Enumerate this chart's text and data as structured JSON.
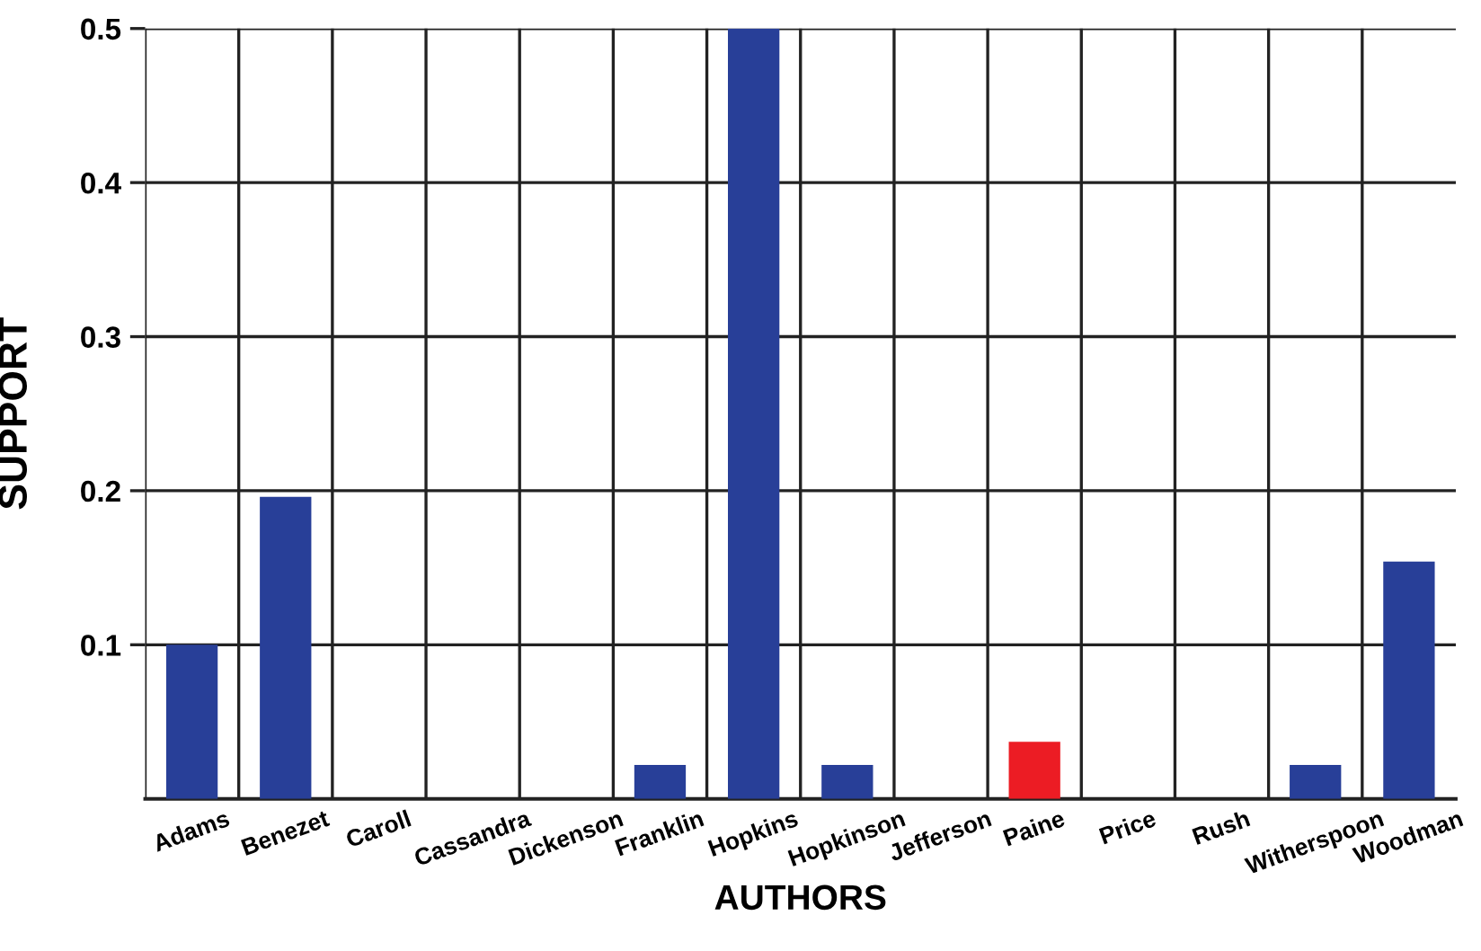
{
  "chart_data": {
    "type": "bar",
    "xlabel": "AUTHORS",
    "ylabel": "SUPPORT",
    "categories": [
      "Adams",
      "Benezet",
      "Caroll",
      "Cassandra",
      "Dickenson",
      "Franklin",
      "Hopkins",
      "Hopkinson",
      "Jefferson",
      "Paine",
      "Price",
      "Rush",
      "Witherspoon",
      "Woodman"
    ],
    "values": [
      0.1,
      0.196,
      0,
      0,
      0,
      0.022,
      0.5,
      0.022,
      0,
      0.037,
      0,
      0,
      0.022,
      0.154
    ],
    "colors": [
      "#283f98",
      "#283f98",
      "#283f98",
      "#283f98",
      "#283f98",
      "#283f98",
      "#283f98",
      "#283f98",
      "#283f98",
      "#ec1c24",
      "#283f98",
      "#283f98",
      "#283f98",
      "#283f98"
    ],
    "ylim": [
      0,
      0.5
    ],
    "yticks": [
      0.1,
      0.2,
      0.3,
      0.4,
      0.5
    ],
    "grid": true
  }
}
